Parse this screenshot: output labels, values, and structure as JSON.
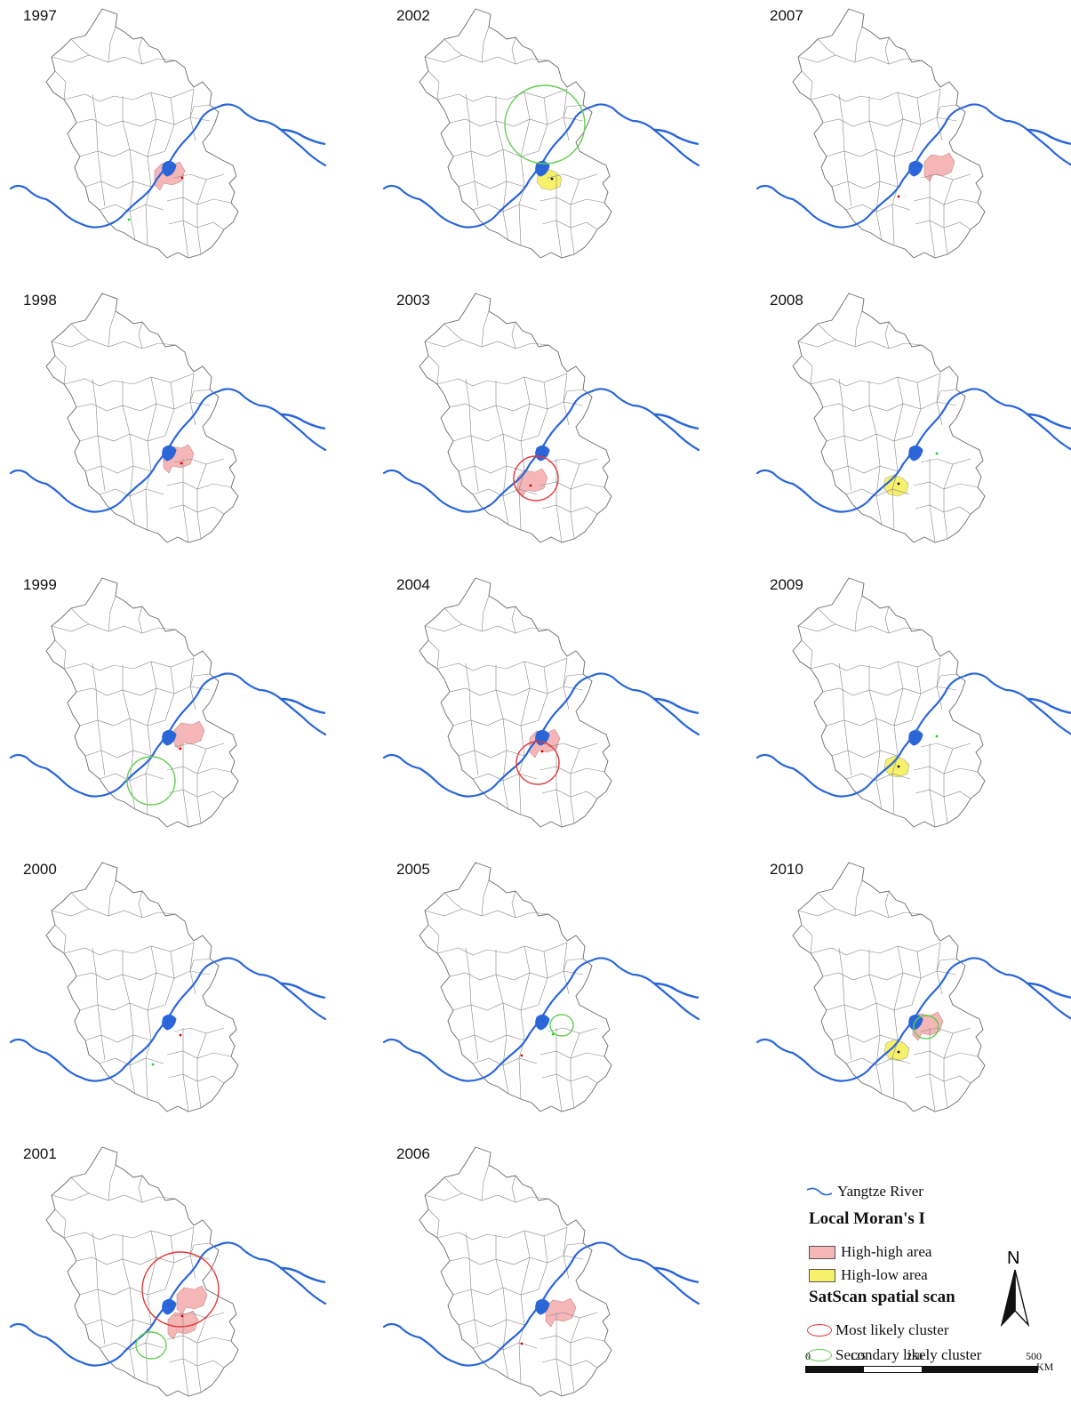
{
  "panels": [
    {
      "year": "1997",
      "hh": [
        [
          190,
          198
        ]
      ],
      "hl": [],
      "red": [],
      "green": [],
      "dots": [
        [
          205,
          200,
          "#d00"
        ],
        [
          145,
          247,
          "#2c2"
        ]
      ]
    },
    {
      "year": "1998",
      "hh": [
        [
          200,
          516
        ]
      ],
      "hl": [],
      "red": [],
      "green": [],
      "dots": [
        [
          204,
          521,
          "#d00"
        ]
      ]
    },
    {
      "year": "1999",
      "hh": [
        [
          212,
          827
        ]
      ],
      "hl": [],
      "red": [],
      "green": [
        [
          170,
          878,
          27,
          27
        ]
      ],
      "dots": [
        [
          203,
          842,
          "#d00"
        ]
      ]
    },
    {
      "year": "2000",
      "hh": [],
      "hl": [],
      "red": [],
      "green": [],
      "dots": [
        [
          203,
          1164,
          "#d00"
        ],
        [
          172,
          1197,
          "#2c2"
        ]
      ]
    },
    {
      "year": "2001",
      "hh": [
        [
          215,
          1462
        ],
        [
          205,
          1490
        ]
      ],
      "hl": [],
      "red": [
        [
          203,
          1450,
          43,
          42
        ]
      ],
      "green": [
        [
          170,
          1513,
          17,
          15
        ]
      ],
      "dots": [
        [
          205,
          1480,
          "#d00"
        ]
      ]
    },
    {
      "year": "2002",
      "hh": [],
      "hl": [
        [
          620,
          202
        ]
      ],
      "red": [],
      "green": [
        [
          613,
          140,
          45,
          44
        ]
      ],
      "dots": [
        [
          621,
          201,
          "#111"
        ]
      ]
    },
    {
      "year": "2003",
      "hh": [
        [
          598,
          543
        ]
      ],
      "hl": [],
      "red": [
        [
          603,
          538,
          25,
          25
        ]
      ],
      "green": [],
      "dots": [
        [
          597,
          546,
          "#d00"
        ]
      ]
    },
    {
      "year": "2004",
      "hh": [
        [
          612,
          836
        ]
      ],
      "hl": [],
      "red": [
        [
          605,
          858,
          24,
          24
        ]
      ],
      "green": [],
      "dots": [
        [
          610,
          845,
          "#d00"
        ]
      ]
    },
    {
      "year": "2005",
      "hh": [],
      "hl": [],
      "red": [],
      "green": [
        [
          632,
          1153,
          13,
          12
        ]
      ],
      "dots": [
        [
          622,
          1163,
          "#2c2"
        ],
        [
          587,
          1187,
          "#d00"
        ]
      ]
    },
    {
      "year": "2006",
      "hh": [
        [
          630,
          1476
        ]
      ],
      "hl": [],
      "red": [],
      "green": [],
      "dots": [
        [
          587,
          1511,
          "#d00"
        ]
      ]
    },
    {
      "year": "2007",
      "hh": [
        [
          1056,
          188
        ]
      ],
      "hl": [],
      "red": [],
      "green": [],
      "dots": [
        [
          1011,
          221,
          "#d00"
        ]
      ]
    },
    {
      "year": "2008",
      "hh": [],
      "hl": [
        [
          1010,
          546
        ]
      ],
      "red": [],
      "green": [],
      "dots": [
        [
          1054,
          510,
          "#2c2"
        ],
        [
          1011,
          544,
          "#111"
        ]
      ]
    },
    {
      "year": "2009",
      "hh": [],
      "hl": [
        [
          1011,
          862
        ]
      ],
      "red": [],
      "green": [],
      "dots": [
        [
          1054,
          828,
          "#2c2"
        ],
        [
          1011,
          862,
          "#111"
        ]
      ]
    },
    {
      "year": "2010",
      "hh": [
        [
          1043,
          1154
        ]
      ],
      "hl": [
        [
          1011,
          1181
        ]
      ],
      "red": [],
      "green": [
        [
          1042,
          1155,
          14,
          13
        ]
      ],
      "dots": [
        [
          1011,
          1183,
          "#111"
        ]
      ]
    }
  ],
  "legend": {
    "river_label": "Yangtze River",
    "moran_title": "Local Moran's I",
    "hh_label": "High-high area",
    "hl_label": "High-low area",
    "satscan_title": "SatScan spatial scan",
    "most_label": "Most likely cluster",
    "secondary_label": "Secondary likely cluster"
  },
  "north_label": "N",
  "scale": {
    "ticks": [
      "0",
      "125",
      "250",
      "500"
    ],
    "unit": "KM"
  },
  "colors": {
    "river": "#2a66d8",
    "high_high": "#f4b6b6",
    "high_low": "#f7f06a",
    "most_likely": "#e03a3a",
    "secondary": "#66cc55",
    "boundary": "#6b6b6b"
  }
}
